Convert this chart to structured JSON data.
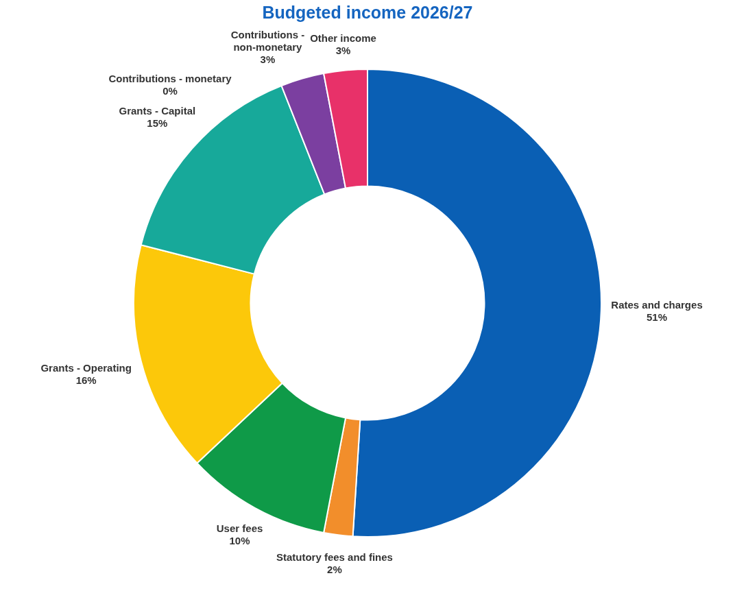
{
  "chart_data": {
    "type": "donut",
    "title": "Budgeted income 2026/27",
    "categories": [
      "Rates and charges",
      "Statutory fees and fines",
      "User fees",
      "Grants - Operating",
      "Grants - Capital",
      "Contributions - monetary",
      "Contributions - non-monetary",
      "Other income"
    ],
    "values": [
      51,
      2,
      10,
      16,
      15,
      0,
      3,
      3
    ],
    "colors": [
      "#0a5fb4",
      "#f28e2b",
      "#0f9a48",
      "#fcc80a",
      "#17a99a",
      "#d0d0d0",
      "#7b3fa0",
      "#e83169"
    ],
    "value_labels": [
      "51%",
      "2%",
      "10%",
      "16%",
      "15%",
      "0%",
      "3%",
      "3%"
    ],
    "legend": false
  }
}
